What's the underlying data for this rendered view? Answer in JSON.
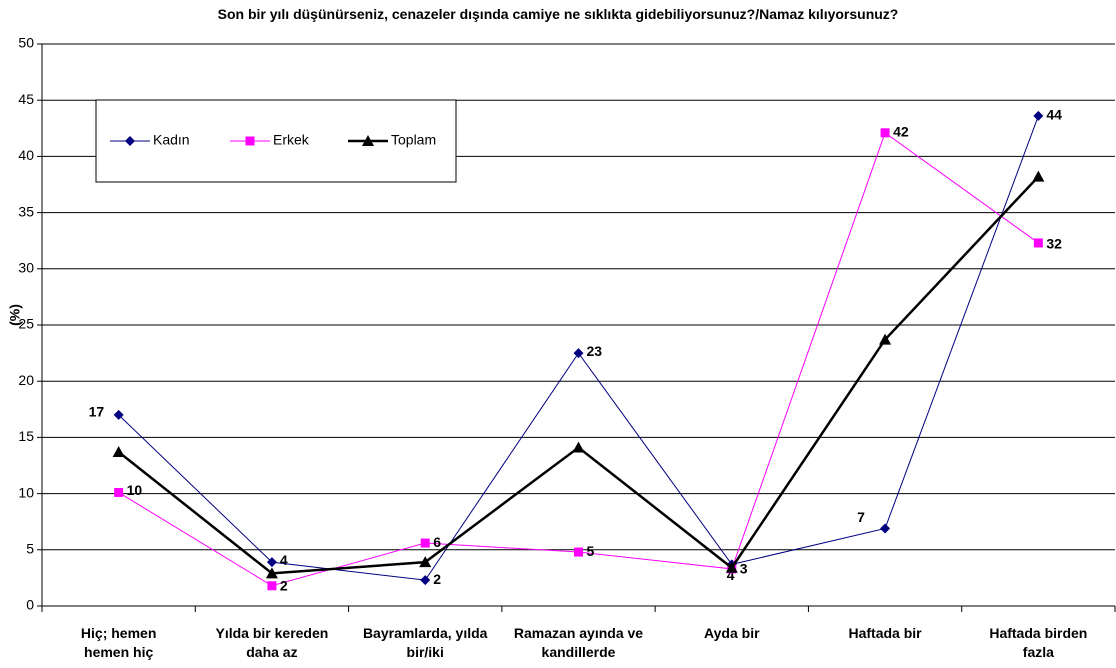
{
  "chart_data": {
    "type": "line",
    "title": "Son bir yılı düşünürseniz, cenazeler dışında camiye ne sıklıkta gidebiliyorsunuz?/Namaz kılıyorsunuz?",
    "y_label": "(%)",
    "categories": [
      "Hiç; hemen hemen hiç",
      "Yılda bir kereden daha az",
      "Bayramlarda, yılda bir/iki",
      "Ramazan ayında ve kandillerde",
      "Ayda bir",
      "Haftada bir",
      "Haftada birden fazla"
    ],
    "series": [
      {
        "name": "Kadın",
        "color": "#000080",
        "marker": "diamond",
        "values": [
          17,
          3.9,
          2.3,
          22.5,
          3.7,
          6.9,
          43.6
        ],
        "value_labels": [
          "17",
          "4",
          "2",
          "23",
          "4",
          "7",
          "44"
        ]
      },
      {
        "name": "Erkek",
        "color": "#ff00ff",
        "marker": "square",
        "values": [
          10.1,
          1.8,
          5.6,
          4.8,
          3.3,
          42.1,
          32.3
        ],
        "value_labels": [
          "10",
          "2",
          "6",
          "5",
          "3",
          "42",
          "32"
        ]
      },
      {
        "name": "Toplam",
        "color": "#000000",
        "marker": "triangle",
        "values": [
          13.7,
          2.9,
          3.9,
          14.1,
          3.4,
          23.7,
          38.2
        ]
      }
    ],
    "ylim": [
      0,
      50
    ],
    "yticks": [
      0,
      5,
      10,
      15,
      20,
      25,
      30,
      35,
      40,
      45,
      50
    ],
    "grid": true
  }
}
